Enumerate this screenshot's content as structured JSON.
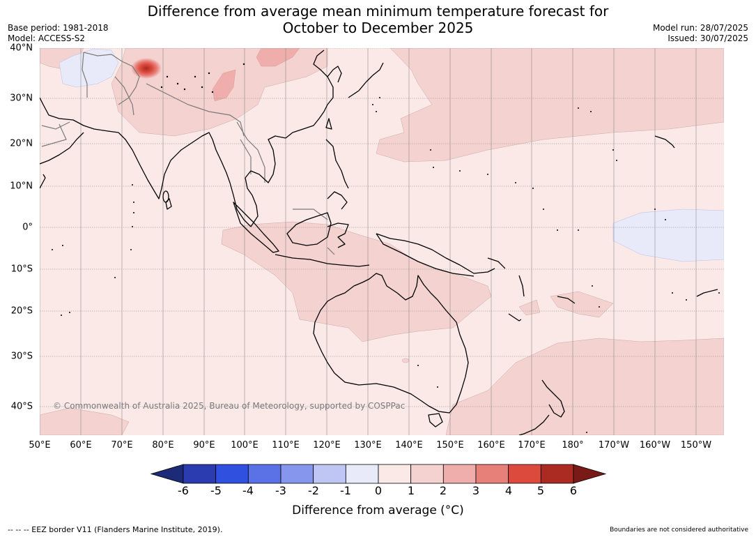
{
  "header": {
    "title_line1": "Difference from average mean minimum temperature forecast for",
    "title_line2": "October to December 2025",
    "base_period": "Base period: 1981-2018",
    "model": "Model: ACCESS-S2",
    "model_run": "Model run: 28/07/2025",
    "issued": "Issued: 30/07/2025"
  },
  "map": {
    "lon_labels": [
      "50°E",
      "60°E",
      "70°E",
      "80°E",
      "90°E",
      "100°E",
      "110°E",
      "120°E",
      "130°E",
      "140°E",
      "150°E",
      "160°E",
      "170°E",
      "180°",
      "170°W",
      "160°W",
      "150°W"
    ],
    "lat_labels": [
      "40°N",
      "30°N",
      "20°N",
      "10°N",
      "0°",
      "10°S",
      "20°S",
      "30°S",
      "40°S"
    ],
    "copyright": "© Commonwealth of Australia 2025, Bureau of Meteorology, supported by COSPPac",
    "background_anomaly_color": "#fbe9e8",
    "land_outline_color": "#000000",
    "border_color": "#7a7a7a"
  },
  "colorbar": {
    "tick_labels": [
      "-6",
      "-5",
      "-4",
      "-3",
      "-2",
      "-1",
      "0",
      "1",
      "2",
      "3",
      "4",
      "5",
      "6"
    ],
    "colors": [
      "#1c2a78",
      "#2a3cb0",
      "#3050e0",
      "#5a72e6",
      "#8596ec",
      "#bfc6f3",
      "#e8eafa",
      "#fbe9e8",
      "#f4d2d0",
      "#efaeab",
      "#e8807a",
      "#dc4a3e",
      "#ab2a22",
      "#7a1a16"
    ],
    "title": "Difference from average (°C)"
  },
  "footer": {
    "eez_note": "--  --  -- EEZ border V11 (Flanders Marine Institute, 2019).",
    "boundaries_note": "Boundaries are not considered authoritative"
  }
}
